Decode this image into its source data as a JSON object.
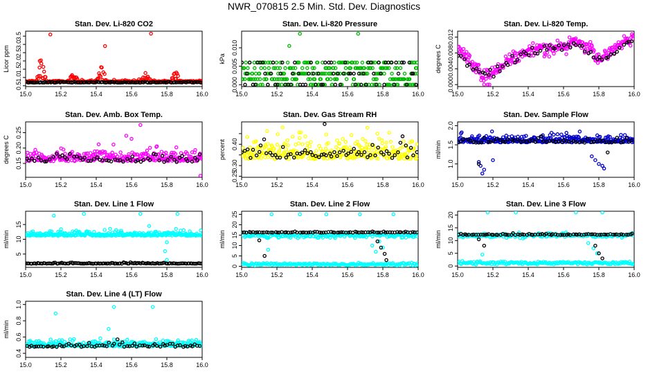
{
  "page_title": "NWR_070815  2.5 Min. Std. Dev. Diagnostics",
  "chart_data": [
    {
      "id": "co2",
      "type": "scatter",
      "title": "Stan. Dev. Li-820 CO2",
      "ylabel": "Licor ppm",
      "xlim": [
        15.0,
        16.0
      ],
      "ylim": [
        0.45,
        3.8
      ],
      "yticks": [
        0.5,
        1.0,
        1.5,
        2.0,
        2.5,
        3.0,
        3.5
      ],
      "ytick_labels": [
        "0.5",
        "1.0",
        "1.5",
        "2.0",
        "2.5",
        "3.0",
        "3.5"
      ],
      "xticks": [
        15.0,
        15.2,
        15.4,
        15.6,
        15.8,
        16.0
      ],
      "xtick_labels": [
        "15.0",
        "15.2",
        "15.4",
        "15.6",
        "15.8",
        "16.0"
      ],
      "color": "#ff0000",
      "series": [
        {
          "name": "main",
          "color": "#ff0000",
          "baseline": 0.75,
          "spread": 0.08,
          "n": 260,
          "bumps": [
            [
              15.09,
              1.55
            ],
            [
              15.27,
              0.6
            ],
            [
              15.43,
              1.2
            ],
            [
              15.68,
              0.6
            ],
            [
              15.85,
              0.7
            ]
          ],
          "outliers": [
            [
              15.14,
              3.6
            ],
            [
              15.45,
              2.9
            ],
            [
              15.71,
              3.65
            ],
            [
              15.08,
              2.0
            ]
          ]
        },
        {
          "name": "ref",
          "color": "#000000",
          "baseline": 0.7,
          "spread": 0.04,
          "n": 120,
          "bumps": [],
          "outliers": []
        }
      ]
    },
    {
      "id": "pressure",
      "type": "scatter",
      "title": "Stan. Dev. Li-820 Pressure",
      "ylabel": "kPa",
      "xlim": [
        15.0,
        16.0
      ],
      "ylim": [
        -0.0005,
        0.0145
      ],
      "yticks": [
        0.0,
        0.005,
        0.01
      ],
      "ytick_labels": [
        "0.000",
        "0.005",
        "0.010"
      ],
      "xticks": [
        15.0,
        15.2,
        15.4,
        15.6,
        15.8,
        16.0
      ],
      "xtick_labels": [
        "15.0",
        "15.2",
        "15.4",
        "15.6",
        "15.8",
        "16.0"
      ],
      "color": "#00bb00",
      "series": [
        {
          "name": "main",
          "color": "#00bb00",
          "levels": [
            0,
            0.0015,
            0.003,
            0.0045,
            0.006
          ],
          "n": 300,
          "outliers": [
            [
              15.33,
              0.0138
            ],
            [
              15.27,
              0.0105
            ],
            [
              15.66,
              0.0138
            ]
          ]
        },
        {
          "name": "ref",
          "color": "#000000",
          "levels": [
            0,
            0.003,
            0.006
          ],
          "n": 70,
          "outliers": []
        }
      ]
    },
    {
      "id": "temp",
      "type": "scatter",
      "title": "Stan. Dev. Li-820 Temp.",
      "ylabel": "degrees C",
      "xlim": [
        15.0,
        16.0
      ],
      "ylim": [
        -0.0005,
        0.0135
      ],
      "yticks": [
        0.0,
        0.004,
        0.008,
        0.012
      ],
      "ytick_labels": [
        "0.000",
        "0.004",
        "0.008",
        "0.012"
      ],
      "xticks": [
        15.0,
        15.2,
        15.4,
        15.6,
        15.8,
        16.0
      ],
      "xtick_labels": [
        "15.0",
        "15.2",
        "15.4",
        "15.6",
        "15.8",
        "16.0"
      ],
      "color": "#ff00ff",
      "series": [
        {
          "name": "main",
          "color": "#ff00ff",
          "curve": [
            [
              15.0,
              0.0085
            ],
            [
              15.06,
              0.007
            ],
            [
              15.1,
              0.004
            ],
            [
              15.15,
              0.002
            ],
            [
              15.22,
              0.0035
            ],
            [
              15.3,
              0.0065
            ],
            [
              15.45,
              0.009
            ],
            [
              15.58,
              0.0095
            ],
            [
              15.68,
              0.011
            ],
            [
              15.75,
              0.0095
            ],
            [
              15.8,
              0.006
            ],
            [
              15.86,
              0.008
            ],
            [
              15.95,
              0.011
            ],
            [
              16.0,
              0.012
            ]
          ],
          "spread": 0.0012,
          "n": 280,
          "outliers": [
            [
              15.15,
              0.0
            ],
            [
              15.17,
              0.0
            ],
            [
              15.18,
              0.0
            ]
          ]
        },
        {
          "name": "ref",
          "color": "#000000",
          "curve": [
            [
              15.0,
              0.008
            ],
            [
              15.12,
              0.003
            ],
            [
              15.2,
              0.003
            ],
            [
              15.35,
              0.0075
            ],
            [
              15.5,
              0.009
            ],
            [
              15.7,
              0.01
            ],
            [
              15.82,
              0.006
            ],
            [
              16.0,
              0.012
            ]
          ],
          "spread": 0.0008,
          "n": 60,
          "outliers": []
        }
      ]
    },
    {
      "id": "box",
      "type": "scatter",
      "title": "Stan. Dev. Amb. Box Temp.",
      "ylabel": "degrees C",
      "xlim": [
        15.0,
        16.0
      ],
      "ylim": [
        0.105,
        0.285
      ],
      "yticks": [
        0.15,
        0.2,
        0.25
      ],
      "ytick_labels": [
        "0.15",
        "0.20",
        "0.25"
      ],
      "xticks": [
        15.0,
        15.2,
        15.4,
        15.6,
        15.8,
        16.0
      ],
      "xtick_labels": [
        "15.0",
        "15.2",
        "15.4",
        "15.6",
        "15.8",
        "16.0"
      ],
      "color": "#ff00ff",
      "series": [
        {
          "name": "main",
          "color": "#ff00ff",
          "baseline": 0.165,
          "spread": 0.025,
          "n": 300,
          "outliers": [
            [
              15.65,
              0.275
            ],
            [
              15.57,
              0.24
            ],
            [
              15.6,
              0.23
            ],
            [
              15.99,
              0.11
            ]
          ]
        },
        {
          "name": "ref",
          "color": "#000000",
          "baseline": 0.16,
          "spread": 0.018,
          "n": 60,
          "outliers": []
        }
      ]
    },
    {
      "id": "rh",
      "type": "scatter",
      "title": "Stan. Dev. Gas Stream RH",
      "ylabel": "percent",
      "xlim": [
        15.0,
        16.0
      ],
      "ylim": [
        0.245,
        0.505
      ],
      "yticks": [
        0.25,
        0.3,
        0.35,
        0.4,
        0.45
      ],
      "ytick_labels": [
        "0.25",
        "0.30",
        "",
        "0.40",
        ""
      ],
      "xticks": [
        15.0,
        15.2,
        15.4,
        15.6,
        15.8,
        16.0
      ],
      "xtick_labels": [
        "15.0",
        "15.2",
        "15.4",
        "15.6",
        "15.8",
        "16.0"
      ],
      "color": "#ffff00",
      "series": [
        {
          "name": "main",
          "color": "#ffff00",
          "baseline": 0.35,
          "spread": 0.065,
          "n": 320,
          "outliers": []
        },
        {
          "name": "ref",
          "color": "#000000",
          "baseline": 0.35,
          "spread": 0.05,
          "n": 65,
          "outliers": [
            [
              15.47,
              0.495
            ]
          ]
        }
      ]
    },
    {
      "id": "sample",
      "type": "scatter",
      "title": "Stan. Dev. Sample Flow",
      "ylabel": "ml/min",
      "xlim": [
        15.0,
        16.0
      ],
      "ylim": [
        0.65,
        2.1
      ],
      "yticks": [
        1.0,
        1.5,
        2.0
      ],
      "ytick_labels": [
        "1.0",
        "1.5",
        "2.0"
      ],
      "xticks": [
        15.0,
        15.2,
        15.4,
        15.6,
        15.8,
        16.0
      ],
      "xtick_labels": [
        "15.0",
        "15.2",
        "15.4",
        "15.6",
        "15.8",
        "16.0"
      ],
      "color": "#0000cc",
      "series": [
        {
          "name": "main",
          "color": "#0000cc",
          "baseline": 1.6,
          "spread": 0.12,
          "n": 320,
          "outliers": [
            [
              15.13,
              0.95
            ],
            [
              15.15,
              0.85
            ],
            [
              15.14,
              0.75
            ],
            [
              15.12,
              1.05
            ],
            [
              15.2,
              1.1
            ],
            [
              15.78,
              1.1
            ],
            [
              15.8,
              1.0
            ],
            [
              15.82,
              0.95
            ],
            [
              15.83,
              0.88
            ],
            [
              15.76,
              1.2
            ]
          ]
        },
        {
          "name": "ref",
          "color": "#000000",
          "baseline": 1.58,
          "spread": 0.08,
          "n": 60,
          "outliers": [
            [
              15.12,
              1.0
            ],
            [
              15.85,
              1.3
            ]
          ]
        }
      ]
    },
    {
      "id": "line1",
      "type": "scatter",
      "title": "Stan. Dev. Line 1 Flow",
      "ylabel": "ml/min",
      "xlim": [
        15.0,
        16.0
      ],
      "ylim": [
        0.5,
        19.5
      ],
      "yticks": [
        5,
        10,
        15
      ],
      "ytick_labels": [
        "5",
        "10",
        "15"
      ],
      "xticks": [
        15.0,
        15.2,
        15.4,
        15.6,
        15.8,
        16.0
      ],
      "xtick_labels": [
        "15.0",
        "15.2",
        "15.4",
        "15.6",
        "15.8",
        "16.0"
      ],
      "color": "#00ffff",
      "series": [
        {
          "name": "main",
          "color": "#00ffff",
          "baseline": 11.5,
          "spread": 1.0,
          "n": 320,
          "outliers": [
            [
              15.33,
              18.6
            ],
            [
              15.65,
              18.6
            ],
            [
              15.86,
              18.6
            ],
            [
              15.16,
              18.0
            ],
            [
              15.8,
              3.0
            ],
            [
              15.79,
              6.0
            ],
            [
              15.8,
              9.0
            ],
            [
              15.7,
              14.5
            ]
          ]
        },
        {
          "name": "ref",
          "color": "#000000",
          "baseline": 1.8,
          "spread": 0.2,
          "n": 120,
          "outliers": []
        }
      ]
    },
    {
      "id": "line2",
      "type": "scatter",
      "title": "Stan. Dev. Line 2 Flow",
      "ylabel": "ml/min",
      "xlim": [
        15.0,
        16.0
      ],
      "ylim": [
        -0.5,
        26.5
      ],
      "yticks": [
        0,
        5,
        10,
        15,
        20,
        25
      ],
      "ytick_labels": [
        "0",
        "5",
        "10",
        "15",
        "20",
        "25"
      ],
      "xticks": [
        15.0,
        15.2,
        15.4,
        15.6,
        15.8,
        16.0
      ],
      "xtick_labels": [
        "15.0",
        "15.2",
        "15.4",
        "15.6",
        "15.8",
        "16.0"
      ],
      "color": "#00ffff",
      "series": [
        {
          "name": "main",
          "color": "#00ffff",
          "bands": [
            [
              14.8,
              0.8
            ],
            [
              1.0,
              0.4
            ]
          ],
          "n": 340,
          "outliers": [
            [
              15.17,
              25.0
            ],
            [
              15.33,
              25.0
            ],
            [
              15.48,
              25.0
            ],
            [
              15.67,
              25.0
            ],
            [
              15.86,
              25.0
            ],
            [
              15.15,
              8
            ],
            [
              15.74,
              10
            ],
            [
              15.76,
              7
            ],
            [
              15.78,
              12
            ],
            [
              15.8,
              9
            ]
          ]
        },
        {
          "name": "ref",
          "color": "#000000",
          "baseline": 16.3,
          "spread": 0.3,
          "n": 80,
          "outliers": [
            [
              15.1,
              12.5
            ],
            [
              15.13,
              5.0
            ],
            [
              15.77,
              12
            ],
            [
              15.79,
              9
            ],
            [
              15.81,
              6
            ],
            [
              15.82,
              3
            ]
          ]
        }
      ]
    },
    {
      "id": "line3",
      "type": "scatter",
      "title": "Stan. Dev. Line 3 Flow",
      "ylabel": "ml/min",
      "xlim": [
        15.0,
        16.0
      ],
      "ylim": [
        -0.5,
        21.5
      ],
      "yticks": [
        0,
        5,
        10,
        15,
        20
      ],
      "ytick_labels": [
        "0",
        "5",
        "10",
        "15",
        "20"
      ],
      "xticks": [
        15.0,
        15.2,
        15.4,
        15.6,
        15.8,
        16.0
      ],
      "xtick_labels": [
        "15.0",
        "15.2",
        "15.4",
        "15.6",
        "15.8",
        "16.0"
      ],
      "color": "#00ffff",
      "series": [
        {
          "name": "main",
          "color": "#00ffff",
          "bands": [
            [
              12.0,
              0.6
            ],
            [
              1.2,
              0.4
            ]
          ],
          "n": 340,
          "outliers": [
            [
              15.17,
              21.0
            ],
            [
              15.33,
              21.0
            ],
            [
              15.67,
              21.0
            ],
            [
              15.82,
              21.0
            ],
            [
              15.14,
              4.5
            ],
            [
              15.74,
              9
            ],
            [
              15.77,
              7
            ],
            [
              15.79,
              5
            ]
          ]
        },
        {
          "name": "ref",
          "color": "#000000",
          "baseline": 12.3,
          "spread": 0.3,
          "n": 80,
          "outliers": [
            [
              15.12,
              10.5
            ],
            [
              15.15,
              8.0
            ],
            [
              15.78,
              8
            ],
            [
              15.8,
              5
            ],
            [
              15.82,
              3
            ]
          ]
        }
      ]
    },
    {
      "id": "line4",
      "type": "scatter",
      "title": "Stan. Dev. Line 4 (LT) Flow",
      "ylabel": "ml/min",
      "xlim": [
        15.0,
        16.0
      ],
      "ylim": [
        0.35,
        1.04
      ],
      "yticks": [
        0.4,
        0.6,
        0.8,
        1.0
      ],
      "ytick_labels": [
        "0.4",
        "0.6",
        "0.8",
        "1.0"
      ],
      "xticks": [
        15.0,
        15.2,
        15.4,
        15.6,
        15.8,
        16.0
      ],
      "xtick_labels": [
        "15.0",
        "15.2",
        "15.4",
        "15.6",
        "15.8",
        "16.0"
      ],
      "color": "#00ffff",
      "series": [
        {
          "name": "main",
          "color": "#00ffff",
          "baseline": 0.5,
          "spread": 0.05,
          "n": 320,
          "outliers": [
            [
              15.17,
              0.89
            ],
            [
              15.5,
              0.97
            ],
            [
              15.72,
              0.97
            ],
            [
              15.47,
              0.7
            ]
          ]
        },
        {
          "name": "ref",
          "color": "#000000",
          "baseline": 0.49,
          "spread": 0.04,
          "n": 70,
          "outliers": []
        }
      ]
    }
  ]
}
